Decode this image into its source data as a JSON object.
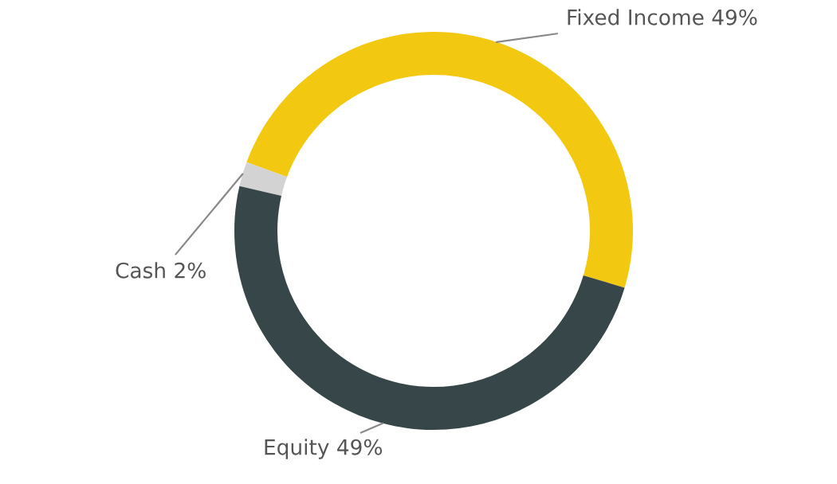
{
  "chart_data": {
    "type": "donut",
    "categories": [
      "Fixed Income",
      "Cash",
      "Equity"
    ],
    "values": [
      49,
      2,
      49
    ],
    "value_labels": [
      "49%",
      "2%",
      "49%"
    ],
    "colors": [
      "#f2c811",
      "#d3d3d3",
      "#374649"
    ]
  }
}
